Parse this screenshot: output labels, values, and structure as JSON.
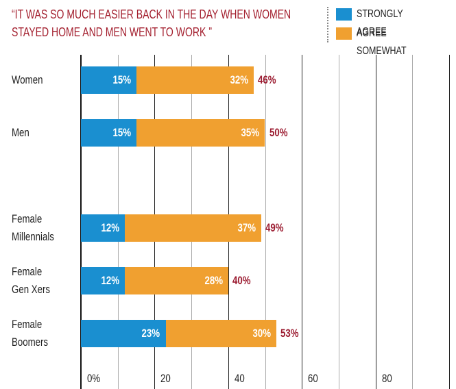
{
  "chart_data": {
    "type": "stacked_barh",
    "title": "“IT WAS SO MUCH EASIER BACK IN THE DAY WHEN WOMEN\nSTAYED HOME AND MEN WENT TO WORK ”",
    "categories": [
      "Women",
      "Men",
      null,
      "Female\nMillennials",
      "Female\nGen Xers",
      "Female\nBoomers"
    ],
    "series": [
      {
        "name": "STRONGLY AGREE",
        "color": "#1a8fd0",
        "values": [
          15,
          15,
          null,
          12,
          12,
          23
        ],
        "value_labels": [
          "15%",
          "15%",
          null,
          "12%",
          "12%",
          "23%"
        ]
      },
      {
        "name": "AGREE SOMEWHAT",
        "color": "#f0a030",
        "values": [
          32,
          35,
          null,
          37,
          28,
          30
        ],
        "value_labels": [
          "32%",
          "35%",
          null,
          "37%",
          "28%",
          "30%"
        ]
      }
    ],
    "totals": [
      46,
      50,
      null,
      49,
      40,
      53
    ],
    "total_labels": [
      "46%",
      "50%",
      null,
      "49%",
      "40%",
      "53%"
    ],
    "total_color": "#9b1b30",
    "xlim": [
      0,
      100
    ],
    "xticks": [
      {
        "value": 0,
        "label": "0%"
      },
      20,
      40,
      60,
      80,
      100
    ],
    "xminor": [
      10,
      30,
      50,
      70,
      90
    ],
    "grid": true,
    "legend": "top-right"
  }
}
